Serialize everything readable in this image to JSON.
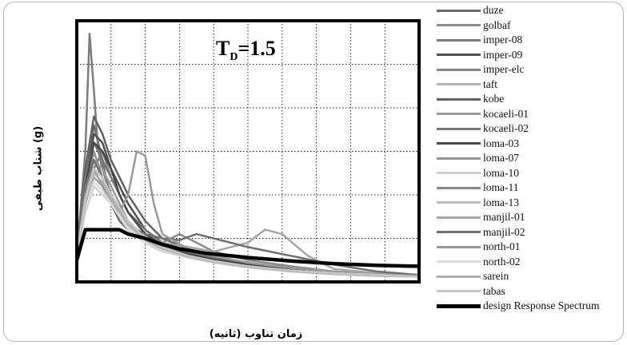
{
  "chart_data": {
    "type": "line",
    "title": "",
    "xlabel": "زمان تناوب (ثانیه)",
    "ylabel": "شتاب طیفی (g)",
    "annotation": {
      "main": "T",
      "sub": "D",
      "rest": "=1.5"
    },
    "xlim": [
      0,
      4
    ],
    "ylim": [
      0,
      3
    ],
    "grid": true,
    "legend_position": "right",
    "series": [
      {
        "name": "duze",
        "color": "#6a6a6a",
        "x": [
          0,
          0.1,
          0.2,
          0.3,
          0.4,
          0.5,
          0.6,
          0.8,
          1.0,
          1.3,
          1.6,
          2.0,
          2.5,
          3.0,
          3.5,
          4.0
        ],
        "y": [
          0.3,
          1.2,
          1.8,
          1.4,
          0.9,
          0.7,
          0.6,
          0.45,
          0.35,
          0.3,
          0.22,
          0.18,
          0.14,
          0.1,
          0.08,
          0.07
        ]
      },
      {
        "name": "golbaf",
        "color": "#8e8e8e",
        "x": [
          0,
          0.1,
          0.2,
          0.3,
          0.4,
          0.5,
          0.6,
          0.8,
          1.0,
          1.3,
          1.6,
          2.0,
          2.5,
          3.0,
          3.5,
          4.0
        ],
        "y": [
          0.3,
          1.0,
          1.5,
          1.2,
          1.0,
          0.8,
          0.65,
          0.5,
          0.4,
          0.32,
          0.25,
          0.2,
          0.15,
          0.11,
          0.09,
          0.07
        ]
      },
      {
        "name": "imper-08",
        "color": "#7c7c7c",
        "x": [
          0,
          0.1,
          0.15,
          0.2,
          0.25,
          0.3,
          0.4,
          0.5,
          0.6,
          0.8,
          1.0,
          1.3,
          1.6,
          2.0,
          2.5,
          3.0,
          3.5,
          4.0
        ],
        "y": [
          0.3,
          1.5,
          2.85,
          2.2,
          1.5,
          1.3,
          1.0,
          0.8,
          0.7,
          0.5,
          0.38,
          0.3,
          0.25,
          0.2,
          0.15,
          0.1,
          0.08,
          0.07
        ]
      },
      {
        "name": "imper-09",
        "color": "#505050",
        "x": [
          0,
          0.1,
          0.2,
          0.3,
          0.4,
          0.5,
          0.6,
          0.8,
          1.0,
          1.3,
          1.6,
          2.0,
          2.5,
          3.0,
          3.5,
          4.0
        ],
        "y": [
          0.3,
          1.1,
          1.7,
          1.6,
          1.3,
          1.1,
          0.9,
          0.6,
          0.45,
          0.35,
          0.28,
          0.2,
          0.15,
          0.11,
          0.09,
          0.07
        ]
      },
      {
        "name": "imper-elc",
        "color": "#858585",
        "x": [
          0,
          0.1,
          0.2,
          0.3,
          0.4,
          0.5,
          0.6,
          0.8,
          1.0,
          1.3,
          1.6,
          2.0,
          2.5,
          3.0,
          3.5,
          4.0
        ],
        "y": [
          0.3,
          1.0,
          1.3,
          1.5,
          1.2,
          1.0,
          0.8,
          0.55,
          0.45,
          0.35,
          0.28,
          0.2,
          0.14,
          0.1,
          0.08,
          0.07
        ]
      },
      {
        "name": "taft",
        "color": "#b4b4b4",
        "x": [
          0,
          0.1,
          0.2,
          0.3,
          0.4,
          0.5,
          0.6,
          0.8,
          1.0,
          1.3,
          1.6,
          2.0,
          2.5,
          3.0,
          3.5,
          4.0
        ],
        "y": [
          0.3,
          0.9,
          1.2,
          1.1,
          0.9,
          0.75,
          0.6,
          0.45,
          0.36,
          0.28,
          0.22,
          0.17,
          0.13,
          0.1,
          0.08,
          0.06
        ]
      },
      {
        "name": "kobe",
        "color": "#636363",
        "x": [
          0,
          0.1,
          0.2,
          0.3,
          0.4,
          0.5,
          0.6,
          0.8,
          1.0,
          1.3,
          1.6,
          2.0,
          2.5,
          3.0,
          3.5,
          4.0
        ],
        "y": [
          0.3,
          1.3,
          1.9,
          1.7,
          1.4,
          1.2,
          1.0,
          0.7,
          0.5,
          0.38,
          0.3,
          0.22,
          0.16,
          0.12,
          0.09,
          0.07
        ]
      },
      {
        "name": "kocaeli-01",
        "color": "#9c9c9c",
        "x": [
          0,
          0.1,
          0.2,
          0.3,
          0.4,
          0.5,
          0.6,
          0.8,
          1.0,
          1.3,
          1.6,
          2.0,
          2.5,
          3.0,
          3.5,
          4.0
        ],
        "y": [
          0.3,
          1.0,
          1.4,
          1.3,
          1.1,
          0.9,
          0.7,
          0.5,
          0.4,
          0.3,
          0.25,
          0.2,
          0.14,
          0.1,
          0.08,
          0.06
        ]
      },
      {
        "name": "kocaeli-02",
        "color": "#777777",
        "x": [
          0,
          0.1,
          0.2,
          0.3,
          0.4,
          0.5,
          0.6,
          0.8,
          1.0,
          1.3,
          1.6,
          2.0,
          2.5,
          3.0,
          3.5,
          4.0
        ],
        "y": [
          0.3,
          1.2,
          1.6,
          1.4,
          1.2,
          1.0,
          0.8,
          0.6,
          0.45,
          0.34,
          0.27,
          0.2,
          0.15,
          0.11,
          0.09,
          0.07
        ]
      },
      {
        "name": "loma-03",
        "color": "#474747",
        "x": [
          0,
          0.1,
          0.2,
          0.3,
          0.4,
          0.5,
          0.6,
          0.8,
          1.0,
          1.3,
          1.6,
          2.0,
          2.5,
          3.0,
          3.5,
          4.0
        ],
        "y": [
          0.3,
          1.1,
          1.6,
          1.5,
          1.3,
          1.0,
          0.8,
          0.55,
          0.42,
          0.32,
          0.26,
          0.2,
          0.15,
          0.11,
          0.08,
          0.07
        ]
      },
      {
        "name": "loma-07",
        "color": "#949494",
        "x": [
          0,
          0.1,
          0.2,
          0.3,
          0.4,
          0.5,
          0.6,
          0.8,
          1.0,
          1.3,
          1.6,
          2.0,
          2.5,
          3.0,
          3.5,
          4.0
        ],
        "y": [
          0.3,
          0.9,
          1.3,
          1.2,
          1.0,
          0.85,
          0.7,
          0.5,
          0.4,
          0.3,
          0.24,
          0.18,
          0.13,
          0.1,
          0.08,
          0.06
        ]
      },
      {
        "name": "loma-10",
        "color": "#cfcfcf",
        "x": [
          0,
          0.1,
          0.2,
          0.3,
          0.4,
          0.5,
          0.6,
          0.8,
          1.0,
          1.3,
          1.6,
          2.0,
          2.5,
          3.0,
          3.5,
          4.0
        ],
        "y": [
          0.3,
          0.8,
          1.1,
          1.0,
          0.9,
          0.75,
          0.6,
          0.45,
          0.35,
          0.28,
          0.22,
          0.17,
          0.13,
          0.1,
          0.08,
          0.06
        ]
      },
      {
        "name": "loma-11",
        "color": "#8a8a8a",
        "x": [
          0,
          0.1,
          0.2,
          0.3,
          0.4,
          0.5,
          0.6,
          0.8,
          1.0,
          1.2,
          1.4,
          1.6,
          1.8,
          2.0,
          2.5,
          3.0,
          3.5,
          4.0
        ],
        "y": [
          0.3,
          1.0,
          1.3,
          1.2,
          1.0,
          0.85,
          0.7,
          0.5,
          0.45,
          0.55,
          0.45,
          0.35,
          0.3,
          0.25,
          0.18,
          0.12,
          0.09,
          0.07
        ]
      },
      {
        "name": "loma-13",
        "color": "#bcbcbc",
        "x": [
          0,
          0.1,
          0.2,
          0.3,
          0.4,
          0.5,
          0.6,
          0.8,
          1.0,
          1.3,
          1.6,
          2.0,
          2.5,
          3.0,
          3.5,
          4.0
        ],
        "y": [
          0.3,
          0.9,
          1.2,
          1.1,
          0.95,
          0.8,
          0.65,
          0.48,
          0.37,
          0.29,
          0.23,
          0.18,
          0.13,
          0.1,
          0.08,
          0.06
        ]
      },
      {
        "name": "manjil-01",
        "color": "#a5a5a5",
        "x": [
          0,
          0.1,
          0.2,
          0.3,
          0.4,
          0.5,
          0.6,
          0.8,
          1.0,
          1.3,
          1.6,
          2.0,
          2.2,
          2.4,
          2.7,
          3.0,
          3.5,
          4.0
        ],
        "y": [
          0.3,
          1.0,
          1.2,
          1.1,
          1.0,
          0.8,
          0.7,
          0.5,
          0.45,
          0.4,
          0.35,
          0.45,
          0.6,
          0.55,
          0.3,
          0.15,
          0.1,
          0.07
        ]
      },
      {
        "name": "manjil-02",
        "color": "#6f6f6f",
        "x": [
          0,
          0.1,
          0.2,
          0.3,
          0.4,
          0.5,
          0.6,
          0.7,
          0.8,
          1.0,
          1.2,
          1.4,
          1.6,
          2.0,
          2.5,
          3.0,
          3.5,
          4.0
        ],
        "y": [
          0.3,
          1.1,
          1.4,
          1.2,
          1.0,
          0.85,
          0.7,
          0.6,
          0.55,
          0.5,
          0.48,
          0.55,
          0.5,
          0.4,
          0.3,
          0.2,
          0.12,
          0.08
        ]
      },
      {
        "name": "north-01",
        "color": "#999999",
        "x": [
          0,
          0.1,
          0.2,
          0.3,
          0.4,
          0.5,
          0.6,
          0.7,
          0.8,
          0.9,
          1.0,
          1.3,
          1.6,
          2.0,
          2.5,
          3.0,
          3.5,
          4.0
        ],
        "y": [
          0.3,
          1.0,
          1.3,
          1.1,
          0.9,
          0.8,
          1.0,
          1.5,
          1.45,
          0.9,
          0.55,
          0.38,
          0.3,
          0.22,
          0.16,
          0.12,
          0.09,
          0.07
        ]
      },
      {
        "name": "north-02",
        "color": "#dcdcdc",
        "x": [
          0,
          0.1,
          0.2,
          0.3,
          0.4,
          0.5,
          0.6,
          0.8,
          1.0,
          1.3,
          1.6,
          2.0,
          2.5,
          3.0,
          3.5,
          4.0
        ],
        "y": [
          0.3,
          0.85,
          1.15,
          1.05,
          0.9,
          0.75,
          0.62,
          0.46,
          0.36,
          0.28,
          0.22,
          0.17,
          0.13,
          0.1,
          0.08,
          0.06
        ]
      },
      {
        "name": "sarein",
        "color": "#b0b0b0",
        "x": [
          0,
          0.1,
          0.2,
          0.3,
          0.4,
          0.5,
          0.6,
          0.8,
          1.0,
          1.3,
          1.6,
          2.0,
          2.5,
          3.0,
          3.5,
          4.0
        ],
        "y": [
          0.3,
          0.9,
          1.25,
          1.15,
          0.95,
          0.8,
          0.66,
          0.48,
          0.38,
          0.29,
          0.23,
          0.17,
          0.12,
          0.09,
          0.07,
          0.06
        ]
      },
      {
        "name": "tabas",
        "color": "#c6c6c6",
        "x": [
          0,
          0.1,
          0.2,
          0.3,
          0.4,
          0.5,
          0.6,
          0.8,
          1.0,
          1.3,
          1.6,
          2.0,
          2.5,
          3.0,
          3.5,
          4.0
        ],
        "y": [
          0.3,
          0.95,
          1.3,
          1.2,
          1.0,
          0.85,
          0.7,
          0.5,
          0.4,
          0.3,
          0.24,
          0.18,
          0.13,
          0.1,
          0.08,
          0.06
        ]
      },
      {
        "name": "design Response Spectrum",
        "color": "#000000",
        "design": true,
        "x": [
          0,
          0.1,
          0.5,
          0.6,
          0.8,
          1.0,
          1.2,
          1.5,
          2.0,
          2.5,
          3.0,
          3.5,
          4.0
        ],
        "y": [
          0.25,
          0.6,
          0.6,
          0.55,
          0.5,
          0.43,
          0.38,
          0.33,
          0.28,
          0.24,
          0.21,
          0.19,
          0.18
        ]
      }
    ]
  }
}
